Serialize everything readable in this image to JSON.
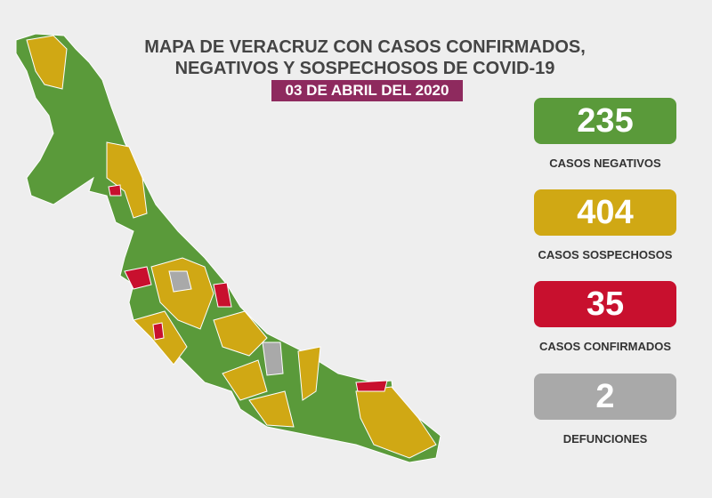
{
  "header": {
    "title_lines": [
      "MAPA DE VERACRUZ CON CASOS CONFIRMADOS,",
      "NEGATIVOS Y SOSPECHOSOS DE COVID-19"
    ],
    "date": "03 DE ABRIL DEL 2020"
  },
  "stats": [
    {
      "value": 235,
      "label": "CASOS NEGATIVOS",
      "color": "#5a9a3a"
    },
    {
      "value": 404,
      "label": "CASOS SOSPECHOSOS",
      "color": "#d0a814"
    },
    {
      "value": 35,
      "label": "CASOS CONFIRMADOS",
      "color": "#c8102e"
    },
    {
      "value": 2,
      "label": "DEFUNCIONES",
      "color": "#a9a9a9"
    }
  ]
}
